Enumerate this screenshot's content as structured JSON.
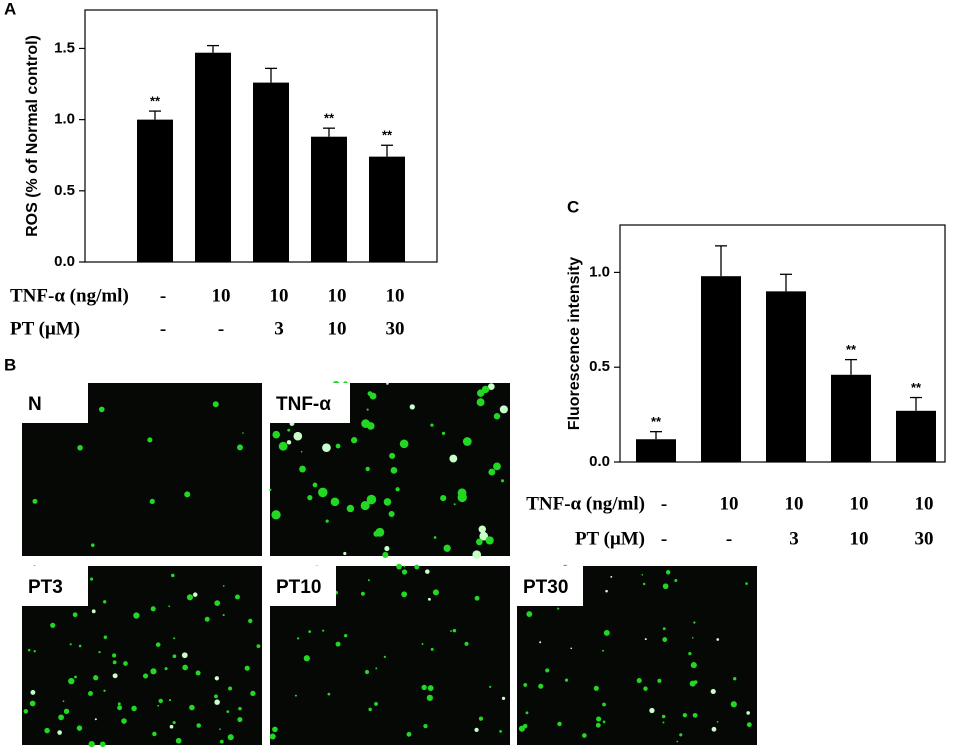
{
  "panels": {
    "a": "A",
    "b": "B",
    "c": "C"
  },
  "chart_data": [
    {
      "type": "bar",
      "ylabel": "ROS (% of Normal control)",
      "values": [
        1.0,
        1.47,
        1.26,
        0.88,
        0.74
      ],
      "errors": [
        0.06,
        0.05,
        0.1,
        0.06,
        0.08
      ],
      "annotations": [
        "**",
        null,
        null,
        "**",
        "**"
      ],
      "color": "#000000",
      "ylim": [
        0,
        1.77
      ],
      "yticks": [
        {
          "value": 0,
          "label": "0.0"
        },
        0.5,
        {
          "value": 1,
          "label": "1.0"
        },
        1.5
      ],
      "rows": [
        {
          "label": "TNF-α (ng/ml)",
          "values": [
            "-",
            "10",
            "10",
            "10",
            "10"
          ]
        },
        {
          "label": "PT (μM)",
          "values": [
            "-",
            "-",
            "3",
            "10",
            "30"
          ]
        }
      ]
    },
    {
      "type": "bar",
      "ylabel": "Fluorescence intensity",
      "values": [
        0.12,
        0.98,
        0.9,
        0.46,
        0.27
      ],
      "errors": [
        0.04,
        0.16,
        0.09,
        0.08,
        0.07
      ],
      "annotations": [
        "**",
        null,
        null,
        "**",
        "**"
      ],
      "color": "#000000",
      "ylim": [
        0,
        1.25
      ],
      "yticks": [
        {
          "value": 0,
          "label": "0.0"
        },
        0.5,
        {
          "value": 1,
          "label": "1.0"
        }
      ],
      "rows": [
        {
          "label": "TNF-α (ng/ml)",
          "values": [
            "-",
            "10",
            "10",
            "10",
            "10"
          ]
        },
        {
          "label": "PT (μM)",
          "values": [
            "-",
            "-",
            "3",
            "10",
            "30"
          ]
        }
      ]
    }
  ],
  "images": [
    {
      "label": "N"
    },
    {
      "label": "TNF-α"
    },
    {
      "label": "PT3"
    },
    {
      "label": "PT10"
    },
    {
      "label": "PT30"
    }
  ]
}
